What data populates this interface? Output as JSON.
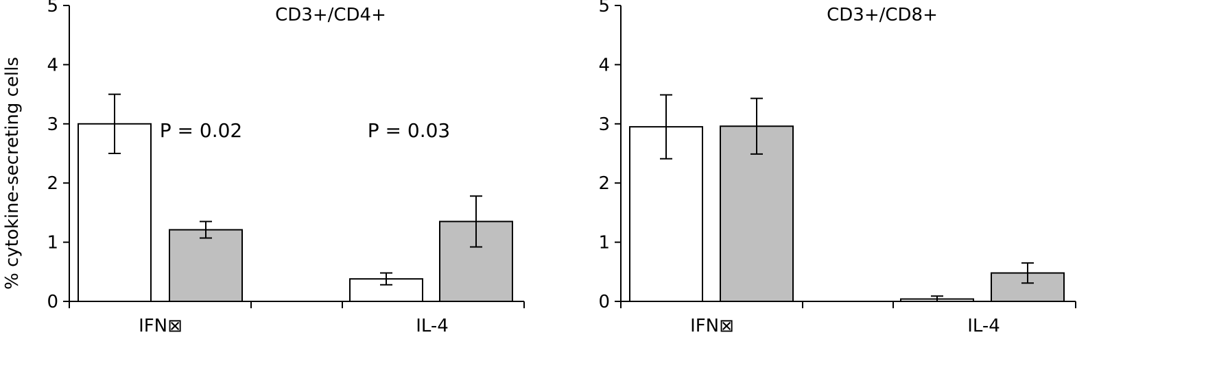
{
  "chart_data": [
    {
      "type": "bar",
      "title": "CD3+/CD4+",
      "ylabel": "% cytokine-secreting cells",
      "xlabel": "",
      "ylim": [
        0,
        5
      ],
      "yticks": [
        "0",
        "1",
        "2",
        "3",
        "4",
        "5"
      ],
      "categories": [
        "IFN⊠",
        "IL-4"
      ],
      "series": [
        {
          "values": [
            3.0,
            0.38
          ],
          "errors": [
            0.5,
            0.1
          ],
          "color": "#ffffff"
        },
        {
          "values": [
            1.21,
            1.35
          ],
          "errors": [
            0.14,
            0.43
          ],
          "color": "#bfbfbf"
        }
      ],
      "annotations": [
        "P = 0.02",
        "P = 0.03"
      ],
      "grid": false
    },
    {
      "type": "bar",
      "title": "CD3+/CD8+",
      "ylabel": "",
      "xlabel": "",
      "ylim": [
        0,
        5
      ],
      "yticks": [
        "0",
        "1",
        "2",
        "3",
        "4",
        "5"
      ],
      "categories": [
        "IFN⊠",
        "IL-4"
      ],
      "series": [
        {
          "values": [
            2.95,
            0.04
          ],
          "errors": [
            0.54,
            0.05
          ],
          "color": "#ffffff"
        },
        {
          "values": [
            2.96,
            0.48
          ],
          "errors": [
            0.47,
            0.17
          ],
          "color": "#bfbfbf"
        }
      ],
      "annotations": [],
      "grid": false
    }
  ]
}
